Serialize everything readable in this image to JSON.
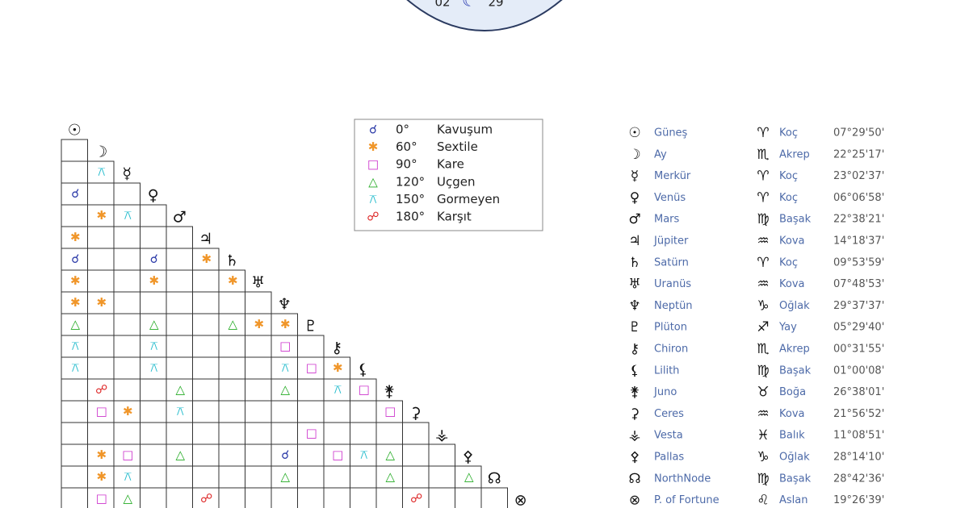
{
  "header": {
    "left": "02",
    "glyph": "☾",
    "right": "29"
  },
  "legend": [
    {
      "symbol": "☌",
      "degree": "0°",
      "name": "Kavuşum",
      "color": "#2b3aa8"
    },
    {
      "symbol": "✱",
      "degree": "60°",
      "name": "Sextile",
      "color": "#f0962a"
    },
    {
      "symbol": "□",
      "degree": "90°",
      "name": "Kare",
      "color": "#cc33cc"
    },
    {
      "symbol": "△",
      "degree": "120°",
      "name": "Uçgen",
      "color": "#22aa22"
    },
    {
      "symbol": "⚻",
      "degree": "150°",
      "name": "Gormeyen",
      "color": "#22bbcc"
    },
    {
      "symbol": "☍",
      "degree": "180°",
      "name": "Karşıt",
      "color": "#dd2222"
    }
  ],
  "planets": [
    {
      "symbol": "☉",
      "name": "Güneş",
      "sign_symbol": "♈",
      "sign": "Koç",
      "position": "07°29'50'"
    },
    {
      "symbol": "☽",
      "name": "Ay",
      "sign_symbol": "♏",
      "sign": "Akrep",
      "position": "22°25'17'"
    },
    {
      "symbol": "☿",
      "name": "Merkür",
      "sign_symbol": "♈",
      "sign": "Koç",
      "position": "23°02'37'"
    },
    {
      "symbol": "♀",
      "name": "Venüs",
      "sign_symbol": "♈",
      "sign": "Koç",
      "position": "06°06'58'"
    },
    {
      "symbol": "♂",
      "name": "Mars",
      "sign_symbol": "♍",
      "sign": "Başak",
      "position": "22°38'21'"
    },
    {
      "symbol": "♃",
      "name": "Jüpiter",
      "sign_symbol": "♒",
      "sign": "Kova",
      "position": "14°18'37'"
    },
    {
      "symbol": "♄",
      "name": "Satürn",
      "sign_symbol": "♈",
      "sign": "Koç",
      "position": "09°53'59'"
    },
    {
      "symbol": "♅",
      "name": "Uranüs",
      "sign_symbol": "♒",
      "sign": "Kova",
      "position": "07°48'53'"
    },
    {
      "symbol": "♆",
      "name": "Neptün",
      "sign_symbol": "♑",
      "sign": "Oğlak",
      "position": "29°37'37'"
    },
    {
      "symbol": "♇",
      "name": "Plüton",
      "sign_symbol": "♐",
      "sign": "Yay",
      "position": "05°29'40'"
    },
    {
      "symbol": "⚷",
      "name": "Chiron",
      "sign_symbol": "♏",
      "sign": "Akrep",
      "position": "00°31'55'"
    },
    {
      "symbol": "⚸",
      "name": "Lilith",
      "sign_symbol": "♍",
      "sign": "Başak",
      "position": "01°00'08'"
    },
    {
      "symbol": "⚵",
      "name": "Juno",
      "sign_symbol": "♉",
      "sign": "Boğa",
      "position": "26°38'01'"
    },
    {
      "symbol": "⚳",
      "name": "Ceres",
      "sign_symbol": "♒",
      "sign": "Kova",
      "position": "21°56'52'"
    },
    {
      "symbol": "⚶",
      "name": "Vesta",
      "sign_symbol": "♓",
      "sign": "Balık",
      "position": "11°08'51'"
    },
    {
      "symbol": "⚴",
      "name": "Pallas",
      "sign_symbol": "♑",
      "sign": "Oğlak",
      "position": "28°14'10'"
    },
    {
      "symbol": "☊",
      "name": "NorthNode",
      "sign_symbol": "♍",
      "sign": "Başak",
      "position": "28°42'36'"
    },
    {
      "symbol": "⊗",
      "name": "P. of Fortune",
      "sign_symbol": "♌",
      "sign": "Aslan",
      "position": "19°26'39'"
    }
  ],
  "grid": [
    [],
    [
      null
    ],
    [
      null,
      "⚻"
    ],
    [
      "☌",
      null,
      null
    ],
    [
      null,
      "✱",
      "⚻",
      null
    ],
    [
      "✱",
      null,
      null,
      null,
      null
    ],
    [
      "☌",
      null,
      null,
      "☌",
      null,
      "✱"
    ],
    [
      "✱",
      null,
      null,
      "✱",
      null,
      null,
      "✱"
    ],
    [
      "✱",
      "✱",
      null,
      null,
      null,
      null,
      null,
      null
    ],
    [
      "△",
      null,
      null,
      "△",
      null,
      null,
      "△",
      "✱",
      "✱"
    ],
    [
      "⚻",
      null,
      null,
      "⚻",
      null,
      null,
      null,
      null,
      "□",
      null
    ],
    [
      "⚻",
      null,
      null,
      "⚻",
      null,
      null,
      null,
      null,
      "⚻",
      "□",
      "✱"
    ],
    [
      null,
      "☍",
      null,
      null,
      "△",
      null,
      null,
      null,
      "△",
      null,
      "⚻",
      "□"
    ],
    [
      null,
      "□",
      "✱",
      null,
      "⚻",
      null,
      null,
      null,
      null,
      null,
      null,
      null,
      "□"
    ],
    [
      null,
      null,
      null,
      null,
      null,
      null,
      null,
      null,
      null,
      "□",
      null,
      null,
      null,
      null
    ],
    [
      null,
      "✱",
      "□",
      null,
      "△",
      null,
      null,
      null,
      "☌",
      null,
      "□",
      "⚻",
      "△",
      null,
      null
    ],
    [
      null,
      "✱",
      "⚻",
      null,
      null,
      null,
      null,
      null,
      "△",
      null,
      null,
      null,
      "△",
      null,
      null,
      "△"
    ],
    [
      null,
      "□",
      "△",
      null,
      null,
      "☍",
      null,
      null,
      null,
      null,
      null,
      null,
      null,
      "☍",
      null,
      null,
      null
    ]
  ]
}
